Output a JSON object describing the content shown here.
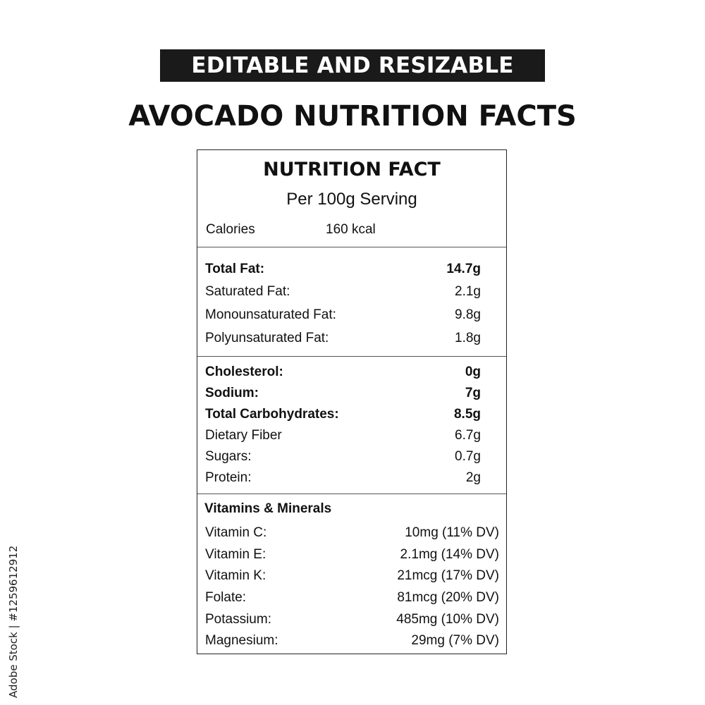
{
  "banner": "EDITABLE AND RESIZABLE",
  "title": "AVOCADO NUTRITION FACTS",
  "label": {
    "heading": "NUTRITION FACT",
    "serving": "Per 100g Serving",
    "calories_label": "Calories",
    "calories_value": "160 kcal"
  },
  "fats": [
    {
      "name": "Total Fat:",
      "value": "14.7g",
      "bold": true
    },
    {
      "name": "Saturated Fat:",
      "value": "2.1g",
      "bold": false
    },
    {
      "name": "Monounsaturated Fat:",
      "value": "9.8g",
      "bold": false
    },
    {
      "name": "Polyunsaturated Fat:",
      "value": "1.8g",
      "bold": false
    }
  ],
  "other": [
    {
      "name": "Cholesterol:",
      "value": "0g",
      "bold": true
    },
    {
      "name": "Sodium:",
      "value": "7g",
      "bold": true
    },
    {
      "name": "Total Carbohydrates:",
      "value": "8.5g",
      "bold": true
    },
    {
      "name": "Dietary Fiber",
      "value": "6.7g",
      "bold": false
    },
    {
      "name": "Sugars:",
      "value": "0.7g",
      "bold": false
    },
    {
      "name": "Protein:",
      "value": "2g",
      "bold": false
    }
  ],
  "vitamins": {
    "heading": "Vitamins & Minerals",
    "items": [
      {
        "name": "Vitamin C:",
        "value": "10mg (11% DV)"
      },
      {
        "name": "Vitamin E:",
        "value": "2.1mg (14% DV)"
      },
      {
        "name": "Vitamin K:",
        "value": "21mcg (17% DV)"
      },
      {
        "name": "Folate:",
        "value": "81mcg (20% DV)"
      },
      {
        "name": "Potassium:",
        "value": "485mg (10% DV)"
      },
      {
        "name": "Magnesium:",
        "value": "29mg (7% DV)"
      }
    ]
  },
  "stock_id": "Adobe Stock | #1259612912"
}
